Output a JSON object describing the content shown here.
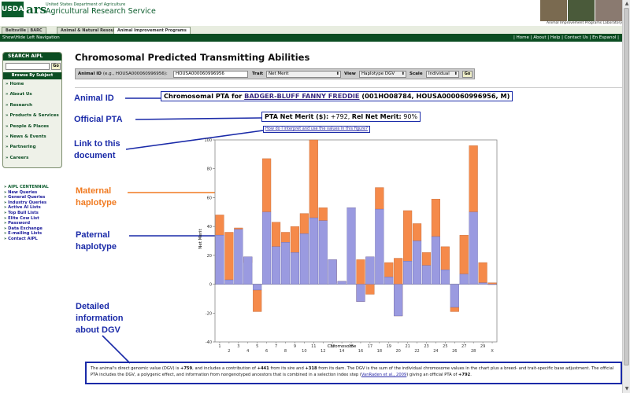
{
  "header": {
    "usda": "USDA",
    "ars": "ars",
    "department": "United States Department of Agriculture",
    "agency": "Agricultural Research Service",
    "lab_name": "Animal Improvement Programs Laboratory"
  },
  "tabs": [
    {
      "label": "Beltsville | BARC"
    },
    {
      "label": "Animal & Natural Resources"
    },
    {
      "label": "Animal Improvement Programs"
    }
  ],
  "nav": {
    "show_hide": "Show\\Hide Left Navigation",
    "links": "| Home | About | Help | Contact Us | En Espanol |"
  },
  "sidebar": {
    "search_title": "SEARCH AIPL",
    "go": "Go",
    "browse_title": "Browse By Subject",
    "items": [
      {
        "label": "Home"
      },
      {
        "label": "About Us"
      },
      {
        "label": "Research"
      },
      {
        "label": "Products & Services"
      },
      {
        "label": "People & Places"
      },
      {
        "label": "News & Events"
      },
      {
        "label": "Partnering"
      },
      {
        "label": "Careers"
      }
    ],
    "aipl_links": [
      {
        "label": "AIPL CENTENNIAL"
      },
      {
        "label": "New Queries"
      },
      {
        "label": "General Queries"
      },
      {
        "label": "Industry Queries"
      },
      {
        "label": "Active AI Lists"
      },
      {
        "label": "Top Bull Lists"
      },
      {
        "label": "Elite Cow List"
      },
      {
        "label": "Password"
      },
      {
        "label": "Data Exchange"
      },
      {
        "label": "E-mailing Lists"
      },
      {
        "label": "Contact AIPL"
      }
    ]
  },
  "main": {
    "title": "Chromosomal Predicted Transmitting Abilities",
    "form": {
      "animal_id_label": "Animal ID",
      "animal_id_hint": "(e.g., HOUSA000060996956):",
      "animal_id_value": "HOUSA000060996956",
      "trait_label": "Trait",
      "trait_value": "Net Merit",
      "view_label": "View",
      "view_value": "Haplotype DGV",
      "scale_label": "Scale",
      "scale_value": "Individual",
      "go": "Go"
    },
    "pta_heading_prefix": "Chromosomal PTA for",
    "animal_name": "BADGER-BLUFF FANNY FREDDIE",
    "animal_ids": "(001HO08784, HOUSA000060996956, M)",
    "pta_net_merit_label": "PTA Net Merit ($):",
    "pta_net_merit_value": "+792",
    "rel_label": "Rel Net Merit:",
    "rel_value": "90%",
    "interpret_link": "How do I interpret and use the values in this figure?"
  },
  "annotations": {
    "animal_id": "Animal ID",
    "official_pta": "Official PTA",
    "link_doc_1": "Link to this",
    "link_doc_2": "document",
    "maternal_1": "Maternal",
    "maternal_2": "haplotype",
    "paternal_1": "Paternal",
    "paternal_2": "haplotype",
    "detailed_1": "Detailed",
    "detailed_2": "information",
    "detailed_3": "about DGV"
  },
  "colors": {
    "paternal": "#9a9ae0",
    "maternal": "#f58a4a",
    "annotation_blue": "#1a2aa8",
    "annotation_orange": "#f07a20",
    "usda_green": "#0b4d22"
  },
  "chart_data": {
    "type": "bar",
    "stacked": true,
    "xlabel": "Chromosome",
    "ylabel": "Net Merit",
    "ylim": [
      -40,
      100
    ],
    "yticks": [
      -40,
      -20,
      0,
      20,
      40,
      60,
      80,
      100
    ],
    "x_tick_labels": [
      "1",
      "2",
      "3",
      "4",
      "5",
      "6",
      "7",
      "8",
      "9",
      "10",
      "11",
      "12",
      "13",
      "14",
      "15",
      "16",
      "17",
      "18",
      "19",
      "20",
      "21",
      "22",
      "23",
      "24",
      "25",
      "26",
      "27",
      "28",
      "29",
      "X"
    ],
    "x_tick_rows": [
      "top",
      "bottom",
      "top",
      "bottom",
      "top",
      "bottom",
      "top",
      "bottom",
      "top",
      "bottom",
      "top",
      "bottom",
      "top",
      "bottom",
      "top",
      "bottom",
      "top",
      "bottom",
      "top",
      "bottom",
      "top",
      "bottom",
      "top",
      "bottom",
      "top",
      "bottom",
      "top",
      "bottom",
      "top",
      "bottom"
    ],
    "bars": [
      {
        "sire": 34,
        "dam": 14
      },
      {
        "sire": 3,
        "dam": 33
      },
      {
        "sire": 38,
        "dam": 1
      },
      {
        "sire": 19,
        "dam": -4
      },
      {
        "sire": -4,
        "dam": -15
      },
      {
        "sire": 50,
        "dam": 37
      },
      {
        "sire": 26,
        "dam": 17
      },
      {
        "sire": 29,
        "dam": 7
      },
      {
        "sire": 22,
        "dam": 18
      },
      {
        "sire": 35,
        "dam": 14
      },
      {
        "sire": 46,
        "dam": 54
      },
      {
        "sire": 44,
        "dam": 9
      },
      {
        "sire": 17,
        "dam": -16
      },
      {
        "sire": 2,
        "dam": -1
      },
      {
        "sire": 53,
        "dam": 0
      },
      {
        "sire": -12,
        "dam": 29
      },
      {
        "sire": 19,
        "dam": -26
      },
      {
        "sire": 52,
        "dam": 15
      },
      {
        "sire": 5,
        "dam": 10
      },
      {
        "sire": -22,
        "dam": 40
      },
      {
        "sire": 16,
        "dam": 35
      },
      {
        "sire": 30,
        "dam": 12
      },
      {
        "sire": 13,
        "dam": 9
      },
      {
        "sire": 33,
        "dam": 26
      },
      {
        "sire": 10,
        "dam": 16
      },
      {
        "sire": -16,
        "dam": -3
      },
      {
        "sire": 7,
        "dam": 27
      },
      {
        "sire": 50,
        "dam": 46
      },
      {
        "sire": 1,
        "dam": 14
      },
      {
        "sire": 0,
        "dam": 1
      }
    ]
  },
  "footer": {
    "t1": "The animal's direct genomic value (DGV) is",
    "dgv": "+759",
    "t2": ", and includes a contribution of",
    "sire_contrib": "+441",
    "t3": "from its sire and",
    "dam_contrib": "+318",
    "t4": "from its dam. The DGV is the sum of the individual chromosome values in the chart plus a breed- and trait-specific base adjustment. The official PTA includes the DGV, a polygenic effect, and information from nongenotyped ancestors that is combined in a selection index step (",
    "ref": "VanRaden et al., 2009",
    "t5": ") giving an official PTA of",
    "official": "+792",
    "t6": "."
  }
}
